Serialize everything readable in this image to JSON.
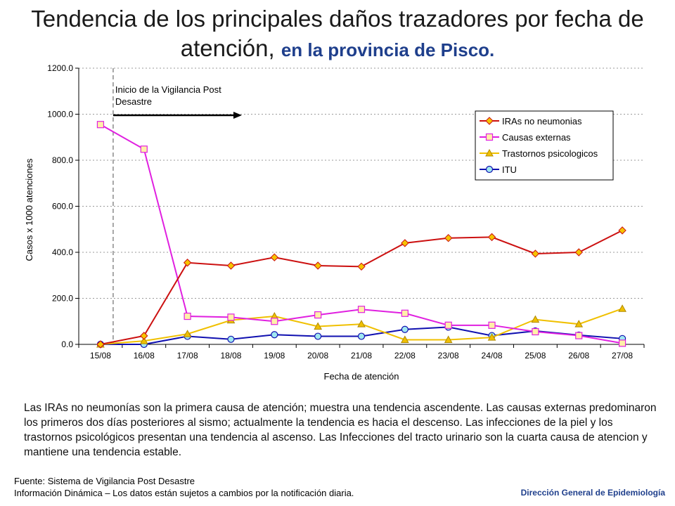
{
  "title": {
    "main": "Tendencia de los principales daños trazadores por fecha de atención,",
    "sub": "en la provincia de Pisco."
  },
  "chart_data": {
    "type": "line",
    "xlabel": "Fecha de atención",
    "ylabel": "Casos x 1000 atenciones",
    "ylim": [
      0,
      1200
    ],
    "yticks": [
      "0.0",
      "200.0",
      "400.0",
      "600.0",
      "800.0",
      "1000.0",
      "1200.0"
    ],
    "categories": [
      "15/08",
      "16/08",
      "17/08",
      "18/08",
      "19/08",
      "20/08",
      "21/08",
      "22/08",
      "23/08",
      "24/08",
      "25/08",
      "26/08",
      "27/08"
    ],
    "grid": "horizontal dashed",
    "legend_position": "top-right",
    "annotation": {
      "line1": "Inicio de la Vigilancia Post",
      "line2": "Desastre",
      "category": "15/08"
    },
    "series": [
      {
        "name": "IRAs no neumonias",
        "color": "#cc1010",
        "marker": "diamond",
        "marker_fill": "#f5c400",
        "values": [
          0,
          37,
          355,
          342,
          378,
          342,
          338,
          440,
          462,
          466,
          394,
          400,
          495
        ]
      },
      {
        "name": "Causas externas",
        "color": "#e020e0",
        "marker": "square",
        "marker_fill": "#fff0a8",
        "values": [
          955,
          848,
          122,
          118,
          100,
          128,
          152,
          135,
          83,
          83,
          55,
          38,
          5
        ]
      },
      {
        "name": "Trastornos psicologicos",
        "color": "#f0c000",
        "marker": "triangle",
        "marker_fill": "#f0c000",
        "values": [
          0,
          15,
          45,
          105,
          122,
          78,
          88,
          20,
          20,
          30,
          108,
          88,
          155
        ]
      },
      {
        "name": "ITU",
        "color": "#1010b0",
        "marker": "circle",
        "marker_fill": "#a0e8f0",
        "values": [
          0,
          0,
          35,
          22,
          42,
          35,
          35,
          65,
          75,
          38,
          58,
          40,
          25
        ]
      }
    ]
  },
  "description": "Las IRAs no neumonías son la primera causa de atención; muestra una tendencia ascendente. Las causas externas predominaron los primeros dos días posteriores al sismo; actualmente la tendencia es hacia el descenso. Las infecciones de la piel y los trastornos psicológicos presentan una tendencia al ascenso. Las Infecciones del tracto urinario son la cuarta causa de atencion y mantiene una tendencia estable.",
  "footer": {
    "source": "Fuente: Sistema de Vigilancia Post Desastre",
    "note": "Información Dinámica – Los datos están sujetos a cambios por la notificación diaria.",
    "org": "Dirección General de Epidemiología"
  }
}
